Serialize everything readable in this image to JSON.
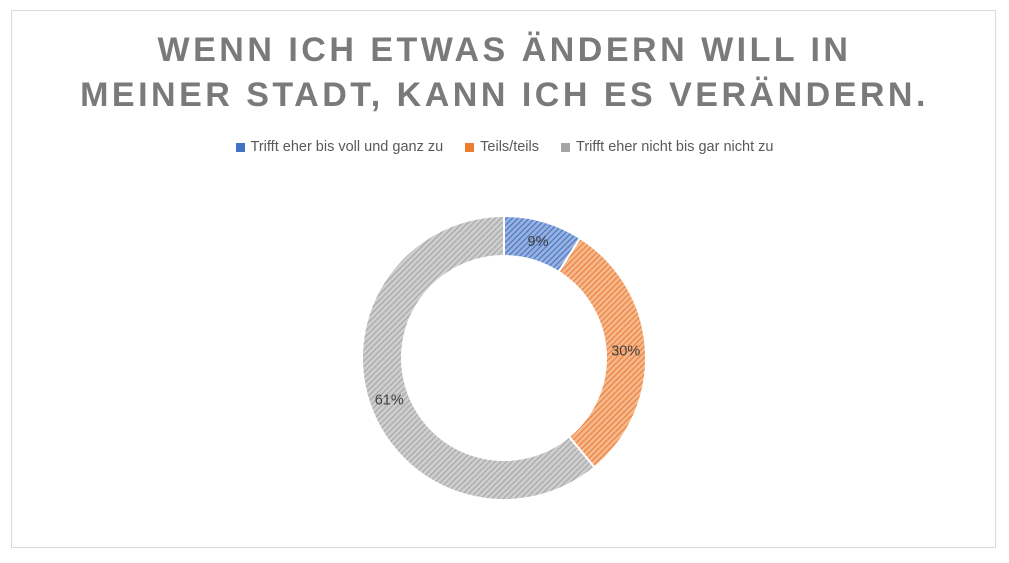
{
  "chart_data": {
    "type": "pie",
    "variant": "donut",
    "title": "WENN ICH ETWAS ÄNDERN WILL IN MEINER STADT, KANN ICH ES VERÄNDERN.",
    "title_lines": [
      "WENN ICH ETWAS ÄNDERN WILL IN",
      "MEINER STADT, KANN ICH ES VERÄNDERN."
    ],
    "legend_position": "top",
    "categories": [
      "Trifft eher bis voll und ganz zu",
      "Teils/teils",
      "Trifft eher nicht bis gar nicht zu"
    ],
    "values": [
      9,
      30,
      61
    ],
    "data_labels": [
      "9%",
      "30%",
      "61%"
    ],
    "colors": [
      "#4472c4",
      "#ed7d31",
      "#a5a5a5"
    ]
  }
}
